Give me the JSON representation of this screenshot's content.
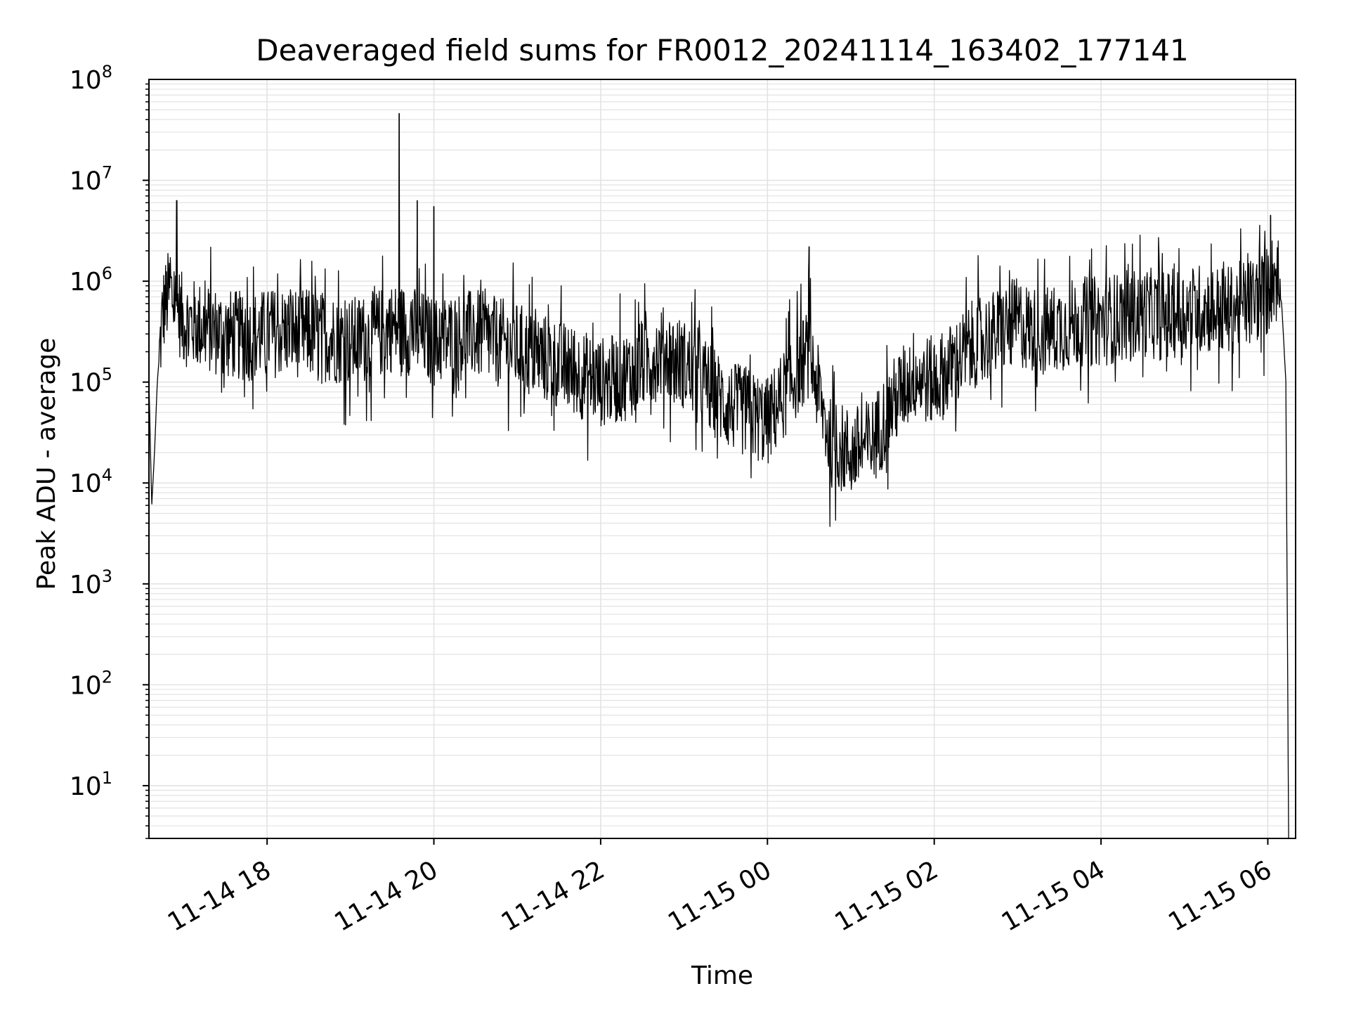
{
  "chart_data": {
    "type": "line",
    "title": "Deaveraged field sums for FR0012_20241114_163402_177141",
    "xlabel": "Time",
    "ylabel": "Peak ADU - average",
    "y_scale": "log",
    "grid": true,
    "line_color": "#000000",
    "grid_color": "#e3e3e3",
    "xlim": [
      "11-14 16:35",
      "11-15 06:20"
    ],
    "ylim": [
      3,
      100000000
    ],
    "x_ticks": [
      "11-14 18",
      "11-14 20",
      "11-14 22",
      "11-15 00",
      "11-15 02",
      "11-15 04",
      "11-15 06"
    ],
    "y_ticks": [
      {
        "base": "10",
        "exp": "1"
      },
      {
        "base": "10",
        "exp": "2"
      },
      {
        "base": "10",
        "exp": "3"
      },
      {
        "base": "10",
        "exp": "4"
      },
      {
        "base": "10",
        "exp": "5"
      },
      {
        "base": "10",
        "exp": "6"
      },
      {
        "base": "10",
        "exp": "7"
      },
      {
        "base": "10",
        "exp": "8"
      }
    ],
    "series": [
      {
        "x": [
          "11-14 16:35",
          "11-14 16:37",
          "11-14 16:39",
          "11-14 16:41",
          "11-14 16:45",
          "11-14 16:50",
          "11-14 17:00",
          "11-14 17:15",
          "11-14 17:30",
          "11-14 17:45",
          "11-14 18:00",
          "11-14 18:15",
          "11-14 18:30",
          "11-14 18:45",
          "11-14 19:00",
          "11-14 19:15",
          "11-14 19:30",
          "11-14 19:45",
          "11-14 20:00",
          "11-14 20:15",
          "11-14 20:30",
          "11-14 20:45",
          "11-14 21:00",
          "11-14 21:15",
          "11-14 21:30",
          "11-14 21:45",
          "11-14 22:00",
          "11-14 22:15",
          "11-14 22:30",
          "11-14 22:45",
          "11-14 23:00",
          "11-14 23:15",
          "11-14 23:30",
          "11-14 23:45",
          "11-15 00:00",
          "11-15 00:15",
          "11-15 00:30",
          "11-15 00:45",
          "11-15 01:00",
          "11-15 01:15",
          "11-15 01:30",
          "11-15 01:45",
          "11-15 02:00",
          "11-15 02:15",
          "11-15 02:30",
          "11-15 02:45",
          "11-15 03:00",
          "11-15 03:15",
          "11-15 03:30",
          "11-15 03:45",
          "11-15 04:00",
          "11-15 04:15",
          "11-15 04:30",
          "11-15 04:45",
          "11-15 05:00",
          "11-15 05:15",
          "11-15 05:30",
          "11-15 05:45",
          "11-15 06:00",
          "11-15 06:05",
          "11-15 06:10",
          "11-15 06:13",
          "11-15 06:15"
        ],
        "y": [
          100000,
          6000,
          20000,
          100000,
          500000,
          800000,
          400000,
          350000,
          300000,
          280000,
          300000,
          320000,
          300000,
          280000,
          250000,
          280000,
          350000,
          320000,
          250000,
          280000,
          300000,
          250000,
          220000,
          180000,
          150000,
          120000,
          100000,
          110000,
          150000,
          200000,
          150000,
          100000,
          60000,
          50000,
          40000,
          90000,
          200000,
          25000,
          20000,
          25000,
          60000,
          120000,
          100000,
          150000,
          250000,
          300000,
          400000,
          300000,
          350000,
          400000,
          400000,
          450000,
          500000,
          450000,
          500000,
          550000,
          500000,
          600000,
          800000,
          1200000,
          600000,
          100000,
          3
        ]
      }
    ],
    "spikes": [
      {
        "x": "11-14 16:55",
        "y": 6300000
      },
      {
        "x": "11-14 19:35",
        "y": 46000000
      },
      {
        "x": "11-14 19:48",
        "y": 6300000
      },
      {
        "x": "11-14 20:00",
        "y": 5500000
      },
      {
        "x": "11-15 00:30",
        "y": 2200000
      },
      {
        "x": "11-15 06:02",
        "y": 4500000
      }
    ],
    "noise_band_decades": 0.45
  }
}
